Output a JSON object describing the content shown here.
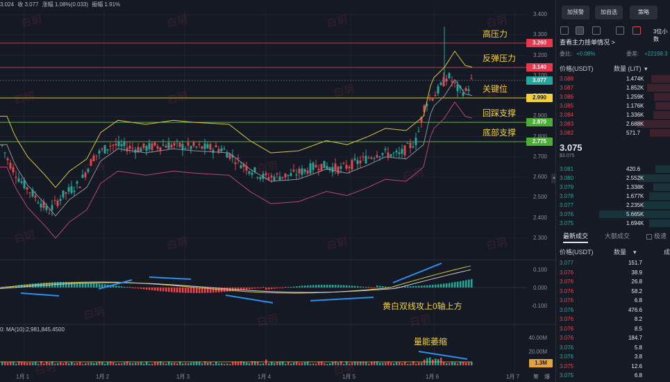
{
  "colors": {
    "up": "#26a69a",
    "down": "#e3474f",
    "bg": "#151924",
    "yellow": "#f2d13a",
    "lineYellow": "#d9c93a",
    "lineGray": "#8f93a0",
    "linePink": "#b9467e",
    "blueArrow": "#2d8ff0"
  },
  "topinfo": {
    "open": "3.024",
    "close": "收 3.077",
    "change": "涨幅 1.08%(0.033)",
    "amplitude": "振幅 1.91%"
  },
  "yaxis": {
    "main": [
      "3.400",
      "3.300",
      "3.200",
      "3.100",
      "3.000",
      "2.900",
      "2.800",
      "2.700",
      "2.600",
      "2.500",
      "2.400",
      "2.300"
    ],
    "macd": [
      "0.100",
      "0.000",
      "-0.100"
    ],
    "volume": [
      "40.00M",
      "20.00M"
    ]
  },
  "levels": [
    {
      "label": "高压力",
      "value": "3.260",
      "tag_color": "#e63950",
      "line_color": "#c23b4b"
    },
    {
      "label": "反弹压力",
      "value": "3.140",
      "tag_color": "#e63950",
      "line_color": "#c23b4b"
    },
    {
      "label": "关键位",
      "value": "2.990",
      "tag_color": "#f2d13a",
      "line_color": "#e5c430"
    },
    {
      "label": "回踩支撑",
      "value": "2.870",
      "tag_color": "#4cae36",
      "line_color": "#6bb04a"
    },
    {
      "label": "底部支撑",
      "value": "2.775",
      "tag_color": "#4cae36",
      "line_color": "#6bb04a"
    }
  ],
  "current_price_tag": {
    "value": "3.077",
    "color": "#26a69a"
  },
  "annotations": {
    "macd": "黄白双线攻上0轴上方",
    "volume": "量能萎缩"
  },
  "volume_tag": "1.3M",
  "ma_info": "0: MA(10):2,981,845.4500",
  "xaxis": [
    "1月 1",
    "1月 2",
    "1月 3",
    "1月 4",
    "1月 5",
    "1月 6",
    "1月 7"
  ],
  "xaxis_extra": [
    "筹",
    "爆"
  ],
  "watermark": "白玥",
  "sidebar": {
    "buttons": [
      "加预警",
      "加自选",
      "策略"
    ],
    "depth_link": "查看主力挂单情况",
    "ratio_label": "委比:",
    "ratio_value": "+0.08%",
    "diff_label": "委差:",
    "diff_value": "+22198.3",
    "group_label": "3位小数",
    "book_headers": {
      "price": "价格(USDT)",
      "qty": "数量 (LIT)"
    },
    "asks": [
      {
        "price": "3.088",
        "qty": "1.474K"
      },
      {
        "price": "3.087",
        "qty": "1.852K"
      },
      {
        "price": "3.086",
        "qty": "1.259K"
      },
      {
        "price": "3.085",
        "qty": "1.176K"
      },
      {
        "price": "3.084",
        "qty": "1.336K"
      },
      {
        "price": "3.083",
        "qty": "2.688K"
      },
      {
        "price": "3.082",
        "qty": "571.7"
      }
    ],
    "last_price": "3.075",
    "last_price_sub": "$3.075",
    "bids": [
      {
        "price": "3.081",
        "qty": "420.6"
      },
      {
        "price": "3.080",
        "qty": "2.552K"
      },
      {
        "price": "3.079",
        "qty": "1.338K"
      },
      {
        "price": "3.078",
        "qty": "1.677K"
      },
      {
        "price": "3.077",
        "qty": "2.235K"
      },
      {
        "price": "3.076",
        "qty": "5.665K"
      },
      {
        "price": "3.075",
        "qty": "1.694K"
      }
    ],
    "tabs": [
      "最新成交",
      "大额成交",
      "极速"
    ],
    "trades_headers": {
      "price": "价格(USDT)",
      "qty": "数量",
      "time": "成"
    },
    "trades": [
      {
        "price": "3.077",
        "qty": "151.7",
        "side": "up"
      },
      {
        "price": "3.076",
        "qty": "38.9",
        "side": "down"
      },
      {
        "price": "3.076",
        "qty": "26.8",
        "side": "down"
      },
      {
        "price": "3.076",
        "qty": "58.2",
        "side": "down"
      },
      {
        "price": "3.076",
        "qty": "6.8",
        "side": "down"
      },
      {
        "price": "3.076",
        "qty": "476.6",
        "side": "up"
      },
      {
        "price": "3.076",
        "qty": "8.2",
        "side": "down"
      },
      {
        "price": "3.076",
        "qty": "8.5",
        "side": "down"
      },
      {
        "price": "3.076",
        "qty": "184.7",
        "side": "down"
      },
      {
        "price": "3.076",
        "qty": "5.8",
        "side": "up"
      },
      {
        "price": "3.076",
        "qty": "3.8",
        "side": "up"
      },
      {
        "price": "3.075",
        "qty": "12.6",
        "side": "down"
      },
      {
        "price": "3.075",
        "qty": "6.8",
        "side": "up"
      }
    ]
  }
}
